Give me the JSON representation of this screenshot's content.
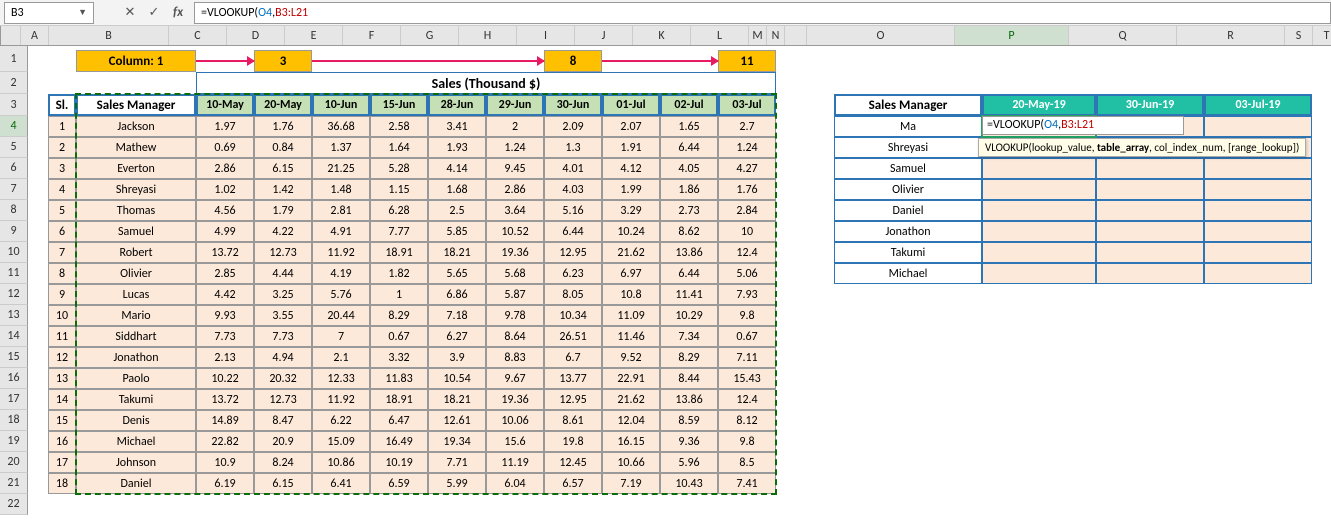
{
  "name_box": "B3",
  "formula_bar": {
    "prefix": "=VLOOKUP(",
    "arg1": "O4",
    "comma": ",",
    "arg2": "B3:L21"
  },
  "columns": [
    {
      "l": "",
      "w": 20
    },
    {
      "l": "A",
      "w": 28
    },
    {
      "l": "B",
      "w": 120
    },
    {
      "l": "C",
      "w": 58
    },
    {
      "l": "D",
      "w": 58
    },
    {
      "l": "E",
      "w": 58
    },
    {
      "l": "F",
      "w": 58
    },
    {
      "l": "G",
      "w": 58
    },
    {
      "l": "H",
      "w": 58
    },
    {
      "l": "I",
      "w": 58
    },
    {
      "l": "J",
      "w": 58
    },
    {
      "l": "K",
      "w": 58
    },
    {
      "l": "L",
      "w": 58
    },
    {
      "l": "M",
      "w": 18
    },
    {
      "l": "N",
      "w": 18
    },
    {
      "l": "",
      "w": 22
    },
    {
      "l": "O",
      "w": 148
    },
    {
      "l": "P",
      "w": 114
    },
    {
      "l": "Q",
      "w": 108
    },
    {
      "l": "R",
      "w": 108
    },
    {
      "l": "S",
      "w": 28
    },
    {
      "l": "T",
      "w": 28
    }
  ],
  "row_heights": {
    "1": 26,
    "2": 22,
    "3": 22,
    "n": 21,
    "22": 21
  },
  "rows_count": 22,
  "active_row": 4,
  "active_cols": [
    "P"
  ],
  "annotations": {
    "col1_label": "Column: 1",
    "labels": [
      "3",
      "8",
      "11"
    ],
    "box_color": "#ffc000",
    "arrow_color": "#e81a63"
  },
  "sales_title": "Sales (Thousand $)",
  "main_headers": {
    "sl": "Sl.",
    "mgr": "Sales Manager",
    "dates": [
      "10-May",
      "20-May",
      "10-Jun",
      "15-Jun",
      "28-Jun",
      "29-Jun",
      "30-Jun",
      "01-Jul",
      "02-Jul",
      "03-Jul"
    ]
  },
  "main_rows": [
    {
      "sl": "1",
      "mgr": "Jackson",
      "v": [
        "1.97",
        "1.76",
        "36.68",
        "2.58",
        "3.41",
        "2",
        "2.09",
        "2.07",
        "1.65",
        "2.7"
      ]
    },
    {
      "sl": "2",
      "mgr": "Mathew",
      "v": [
        "0.69",
        "0.84",
        "1.37",
        "1.64",
        "1.93",
        "1.24",
        "1.3",
        "1.91",
        "6.44",
        "1.24"
      ]
    },
    {
      "sl": "3",
      "mgr": "Everton",
      "v": [
        "2.86",
        "6.15",
        "21.25",
        "5.28",
        "4.14",
        "9.45",
        "4.01",
        "4.12",
        "4.05",
        "4.27"
      ]
    },
    {
      "sl": "4",
      "mgr": "Shreyasi",
      "v": [
        "1.02",
        "1.42",
        "1.48",
        "1.15",
        "1.68",
        "2.86",
        "4.03",
        "1.99",
        "1.86",
        "1.76"
      ]
    },
    {
      "sl": "5",
      "mgr": "Thomas",
      "v": [
        "4.56",
        "1.79",
        "2.81",
        "6.28",
        "2.5",
        "3.64",
        "5.16",
        "3.29",
        "2.73",
        "2.84"
      ]
    },
    {
      "sl": "6",
      "mgr": "Samuel",
      "v": [
        "4.99",
        "4.22",
        "4.91",
        "7.77",
        "5.85",
        "10.52",
        "6.44",
        "10.24",
        "8.62",
        "10"
      ]
    },
    {
      "sl": "7",
      "mgr": "Robert",
      "v": [
        "13.72",
        "12.73",
        "11.92",
        "18.91",
        "18.21",
        "19.36",
        "12.95",
        "21.62",
        "13.86",
        "12.4"
      ]
    },
    {
      "sl": "8",
      "mgr": "Olivier",
      "v": [
        "2.85",
        "4.44",
        "4.19",
        "1.82",
        "5.65",
        "5.68",
        "6.23",
        "6.97",
        "6.44",
        "5.06"
      ]
    },
    {
      "sl": "9",
      "mgr": "Lucas",
      "v": [
        "4.42",
        "3.25",
        "5.76",
        "1",
        "6.86",
        "5.87",
        "8.05",
        "10.8",
        "11.41",
        "7.93"
      ]
    },
    {
      "sl": "10",
      "mgr": "Mario",
      "v": [
        "9.93",
        "3.55",
        "20.44",
        "8.29",
        "7.18",
        "9.78",
        "10.34",
        "11.09",
        "10.29",
        "9.8"
      ]
    },
    {
      "sl": "11",
      "mgr": "Siddhart",
      "v": [
        "7.73",
        "7.73",
        "7",
        "0.67",
        "6.27",
        "8.64",
        "26.51",
        "11.46",
        "7.34",
        "0.67"
      ]
    },
    {
      "sl": "12",
      "mgr": "Jonathon",
      "v": [
        "2.13",
        "4.94",
        "2.1",
        "3.32",
        "3.9",
        "8.83",
        "6.7",
        "9.52",
        "8.29",
        "7.11"
      ]
    },
    {
      "sl": "13",
      "mgr": "Paolo",
      "v": [
        "10.22",
        "20.32",
        "12.33",
        "11.83",
        "10.54",
        "9.67",
        "13.77",
        "22.91",
        "8.44",
        "15.43"
      ]
    },
    {
      "sl": "14",
      "mgr": "Takumi",
      "v": [
        "13.72",
        "12.73",
        "11.92",
        "18.91",
        "18.21",
        "19.36",
        "12.95",
        "21.62",
        "13.86",
        "12.4"
      ]
    },
    {
      "sl": "15",
      "mgr": "Denis",
      "v": [
        "14.89",
        "8.47",
        "6.22",
        "6.47",
        "12.61",
        "10.06",
        "8.61",
        "12.04",
        "8.59",
        "8.12"
      ]
    },
    {
      "sl": "16",
      "mgr": "Michael",
      "v": [
        "22.82",
        "20.9",
        "15.09",
        "16.49",
        "19.34",
        "15.6",
        "19.8",
        "16.15",
        "9.36",
        "9.8"
      ]
    },
    {
      "sl": "17",
      "mgr": "Johnson",
      "v": [
        "10.9",
        "8.24",
        "10.86",
        "10.19",
        "7.71",
        "11.19",
        "12.45",
        "10.66",
        "5.96",
        "8.5"
      ]
    },
    {
      "sl": "18",
      "mgr": "Daniel",
      "v": [
        "6.19",
        "6.15",
        "6.41",
        "6.59",
        "5.99",
        "6.04",
        "6.57",
        "7.19",
        "10.43",
        "7.41"
      ]
    }
  ],
  "lookup_headers": {
    "mgr": "Sales Manager",
    "dates": [
      "20-May-19",
      "30-Jun-19",
      "03-Jul-19"
    ]
  },
  "lookup_rows": [
    {
      "name": "Ma"
    },
    {
      "name": "Shreyasi"
    },
    {
      "name": "Samuel"
    },
    {
      "name": "Olivier"
    },
    {
      "name": "Daniel"
    },
    {
      "name": "Jonathon"
    },
    {
      "name": "Takumi"
    },
    {
      "name": "Michael"
    }
  ],
  "cell_formula": {
    "prefix": "=VLOOKUP(",
    "arg1": "O4",
    "comma": ",",
    "arg2": "B3:L21"
  },
  "tooltip": {
    "fn": "VLOOKUP",
    "sig": "(lookup_value, ",
    "bold": "table_array",
    "rest": ", col_index_num, [range_lookup])"
  },
  "colors": {
    "header_green": "#c5e0b4",
    "data_peach": "#fde9d9",
    "border_blue": "#2e75b6",
    "teal": "#21bfa4",
    "amber": "#ffc000",
    "pink": "#e81a63"
  }
}
